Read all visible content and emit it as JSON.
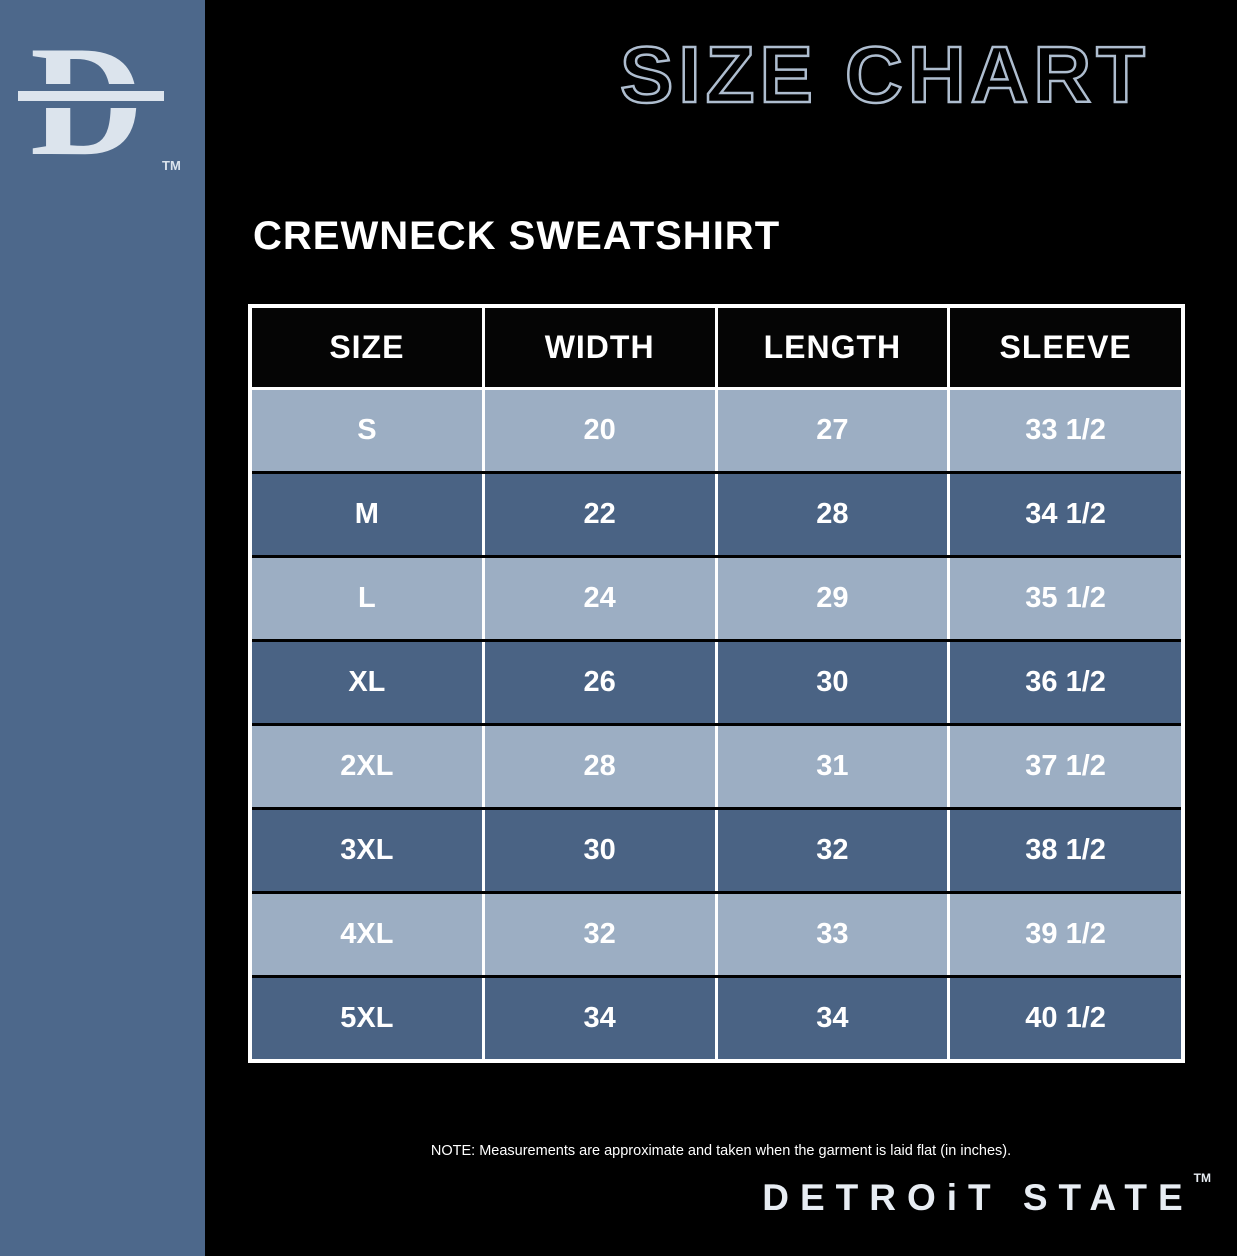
{
  "colors": {
    "background": "#000000",
    "sidebar": "#4d688b",
    "header_bg": "#050505",
    "row_light": "#9caec3",
    "row_dark": "#4a6384",
    "logo": "#dce4ed",
    "title_outline": "#aebdcf",
    "wordmark": "#e8edf3"
  },
  "header": {
    "title": "SIZE CHART",
    "logo_letter": "D",
    "logo_tm": "TM"
  },
  "product": {
    "name": "CREWNECK SWEATSHIRT"
  },
  "chart_data": {
    "type": "table",
    "title": "CREWNECK SWEATSHIRT",
    "columns": [
      "SIZE",
      "WIDTH",
      "LENGTH",
      "SLEEVE"
    ],
    "rows": [
      [
        "S",
        "20",
        "27",
        "33 1/2"
      ],
      [
        "M",
        "22",
        "28",
        "34 1/2"
      ],
      [
        "L",
        "24",
        "29",
        "35 1/2"
      ],
      [
        "XL",
        "26",
        "30",
        "36 1/2"
      ],
      [
        "2XL",
        "28",
        "31",
        "37 1/2"
      ],
      [
        "3XL",
        "30",
        "32",
        "38 1/2"
      ],
      [
        "4XL",
        "32",
        "33",
        "39 1/2"
      ],
      [
        "5XL",
        "34",
        "34",
        "40 1/2"
      ]
    ],
    "units": "inches"
  },
  "footer": {
    "note": "NOTE: Measurements are approximate and taken when the garment is laid flat (in inches).",
    "wordmark": "DETROiT STATE",
    "wordmark_tm": "TM"
  }
}
